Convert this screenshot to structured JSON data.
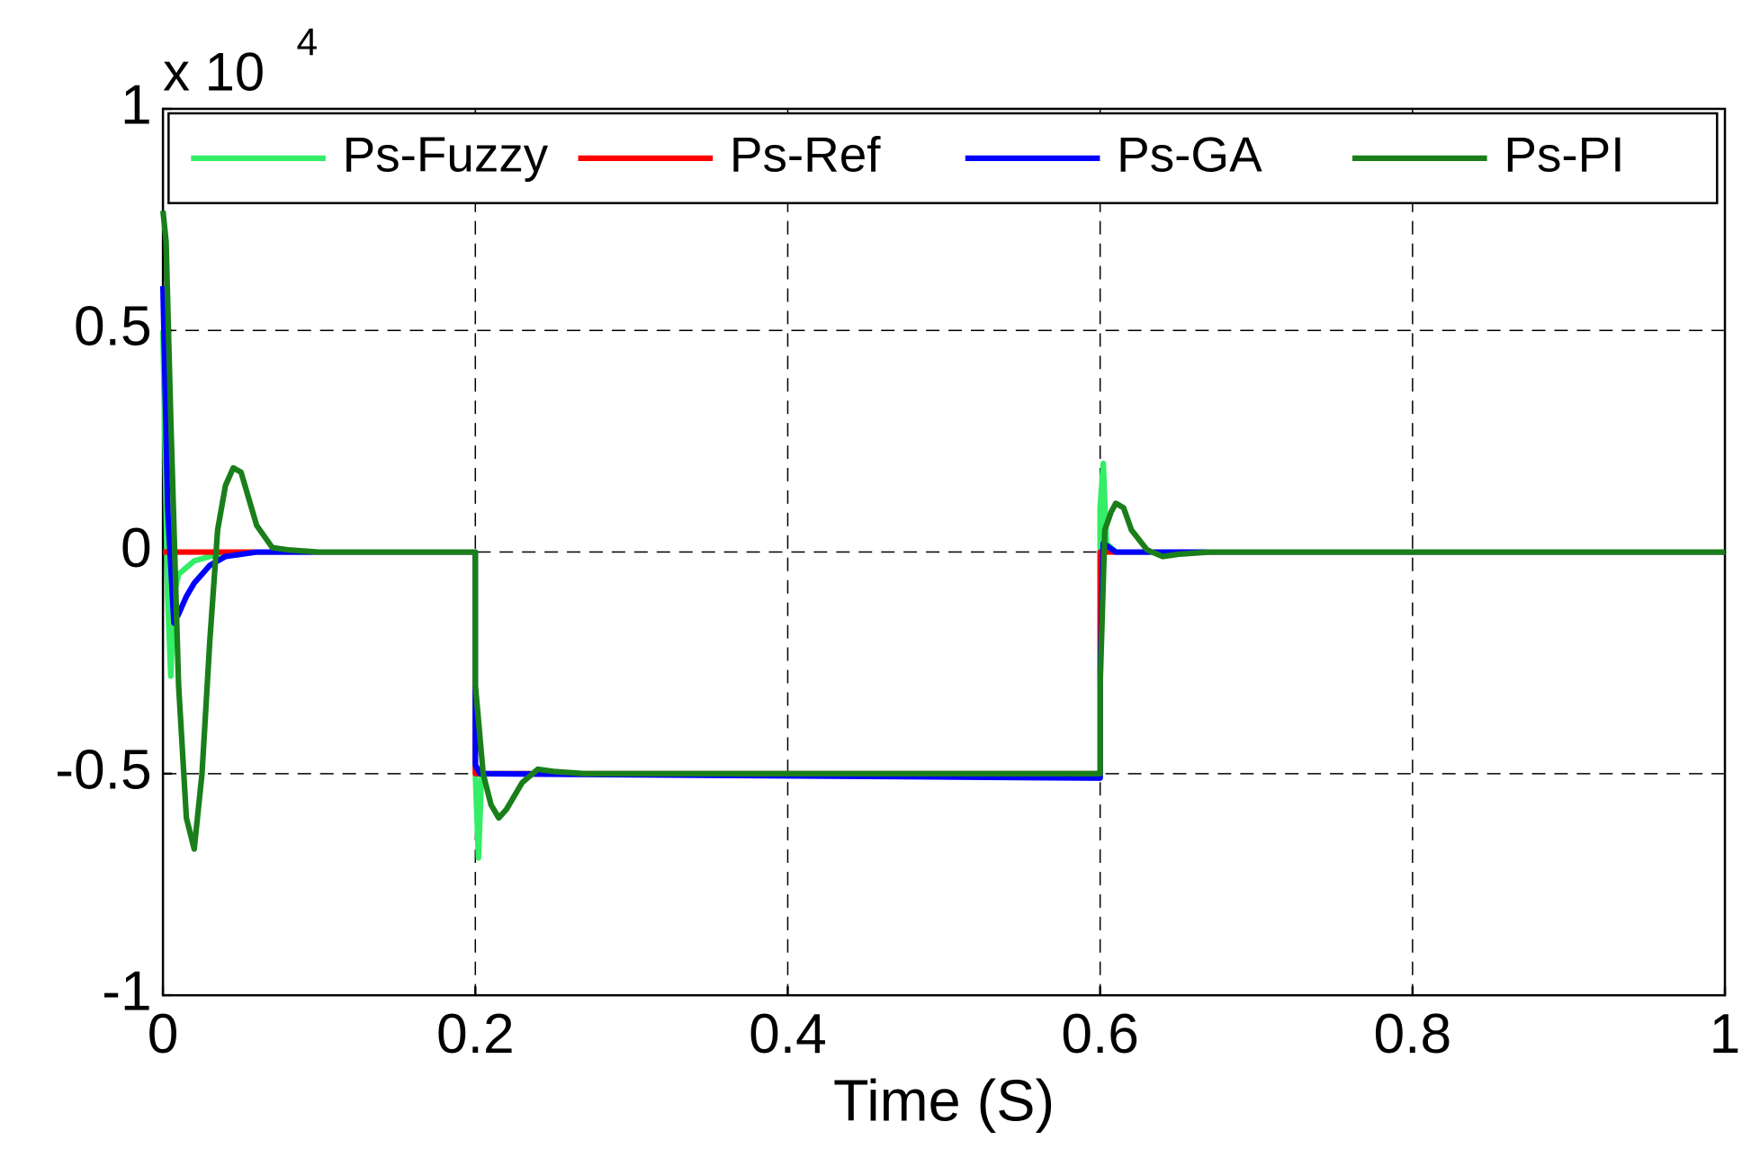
{
  "chart_data": {
    "type": "line",
    "x_label": "Time (S)",
    "y_multiplier": {
      "base": "x 10",
      "exponent": "4"
    },
    "xlim": [
      0,
      1
    ],
    "xticks": [
      0,
      0.2,
      0.4,
      0.6,
      0.8,
      1
    ],
    "ylim": [
      -1,
      1
    ],
    "yticks": [
      -1,
      -0.5,
      0,
      0.5,
      1
    ],
    "grid": true,
    "legend": "top",
    "series": [
      {
        "name": "Ps-Fuzzy",
        "color": "#33ee66",
        "x": [
          0,
          0.003,
          0.005,
          0.007,
          0.01,
          0.02,
          0.04,
          0.2,
          0.2,
          0.202,
          0.204,
          0.6,
          0.6,
          0.602,
          0.604,
          0.61,
          1
        ],
        "values": [
          0.5,
          -0.1,
          -0.28,
          -0.1,
          -0.05,
          -0.02,
          0,
          0,
          -0.5,
          -0.69,
          -0.5,
          -0.5,
          0.1,
          0.2,
          0.02,
          0,
          0
        ]
      },
      {
        "name": "Ps-Ref",
        "color": "#ff0000",
        "x": [
          0,
          0.2,
          0.2,
          0.6,
          0.6,
          1
        ],
        "values": [
          0,
          0,
          -0.5,
          -0.5,
          0,
          0
        ]
      },
      {
        "name": "Ps-GA",
        "color": "#0000ff",
        "x": [
          0,
          0.003,
          0.007,
          0.01,
          0.015,
          0.02,
          0.03,
          0.04,
          0.06,
          0.2,
          0.2,
          0.203,
          0.6,
          0.6,
          0.602,
          0.61,
          1
        ],
        "values": [
          0.6,
          0.1,
          -0.16,
          -0.14,
          -0.1,
          -0.07,
          -0.03,
          -0.01,
          0,
          0,
          -0.48,
          -0.5,
          -0.51,
          -0.28,
          0.02,
          0,
          0
        ]
      },
      {
        "name": "Ps-PI",
        "color": "#1a7f1a",
        "x": [
          0,
          0.002,
          0.005,
          0.01,
          0.015,
          0.02,
          0.025,
          0.03,
          0.035,
          0.04,
          0.045,
          0.05,
          0.055,
          0.06,
          0.07,
          0.08,
          0.1,
          0.2,
          0.2,
          0.205,
          0.21,
          0.215,
          0.22,
          0.23,
          0.24,
          0.25,
          0.27,
          0.6,
          0.6,
          0.603,
          0.607,
          0.61,
          0.615,
          0.62,
          0.63,
          0.64,
          0.65,
          0.67,
          1
        ],
        "values": [
          0.77,
          0.7,
          0.3,
          -0.3,
          -0.6,
          -0.67,
          -0.5,
          -0.2,
          0.05,
          0.15,
          0.19,
          0.18,
          0.12,
          0.06,
          0.01,
          0.005,
          0,
          0,
          -0.3,
          -0.5,
          -0.57,
          -0.6,
          -0.58,
          -0.52,
          -0.49,
          -0.495,
          -0.5,
          -0.5,
          -0.3,
          0.05,
          0.09,
          0.11,
          0.1,
          0.05,
          0.005,
          -0.01,
          -0.005,
          0,
          0
        ]
      }
    ]
  }
}
